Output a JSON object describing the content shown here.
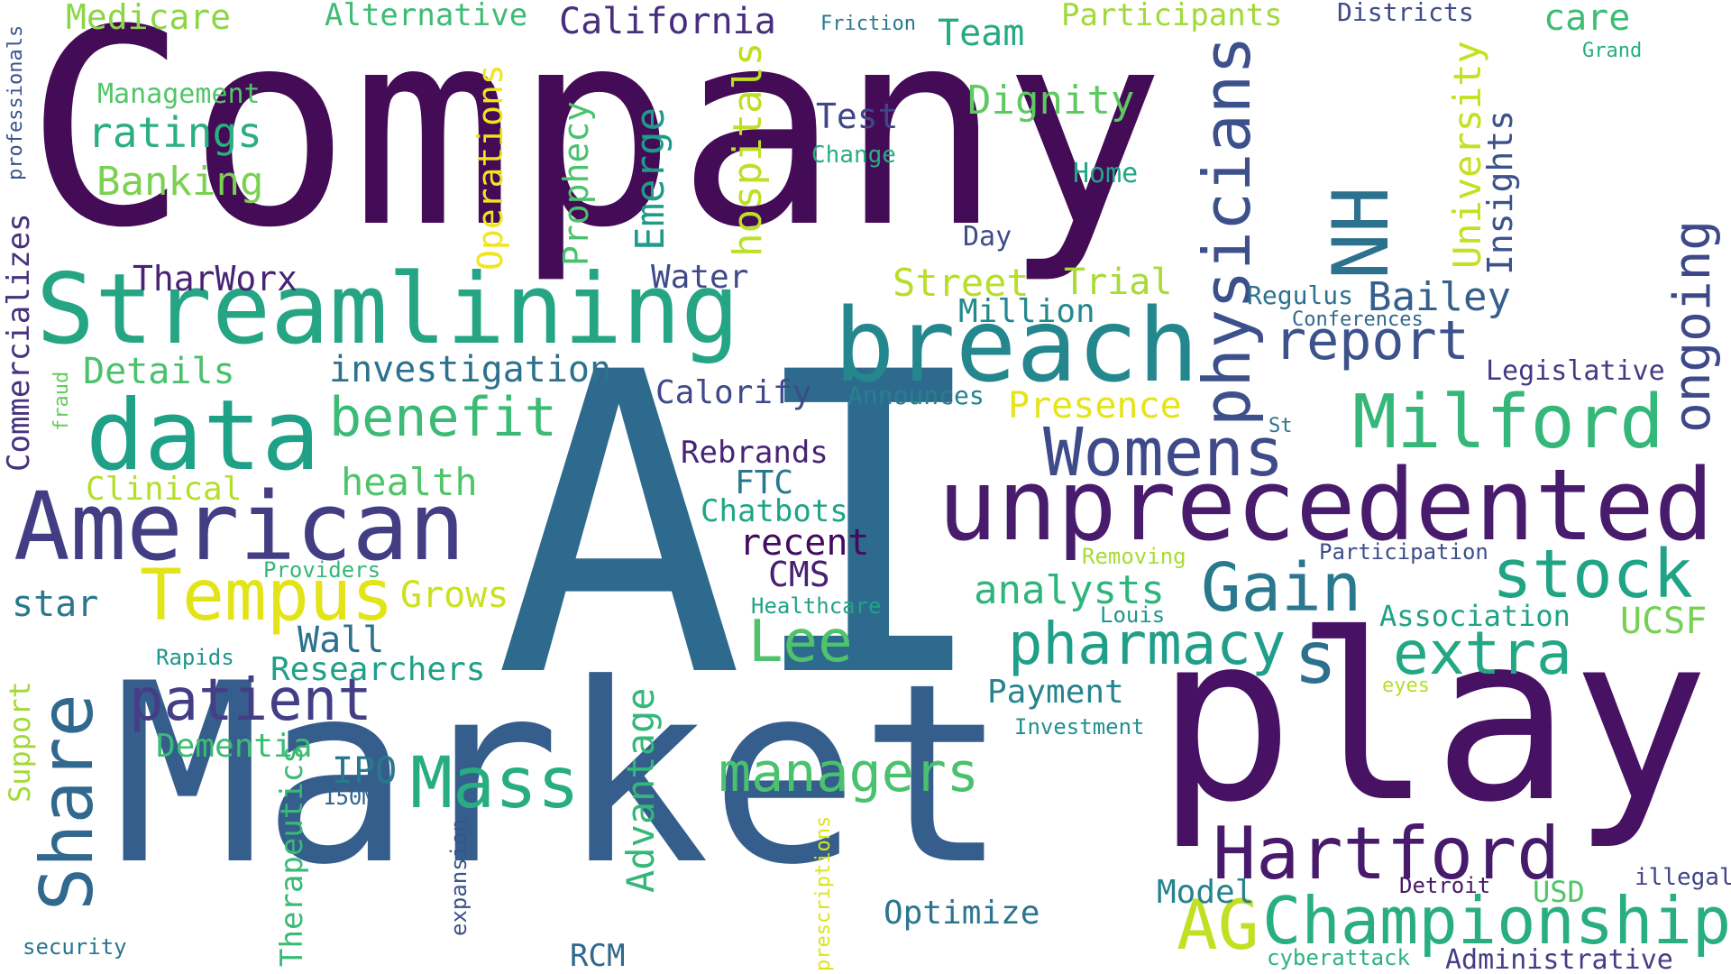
{
  "words": [
    {
      "text": "Company",
      "color": "#440b57"
    },
    {
      "text": "AI",
      "color": "#2e6a8e"
    },
    {
      "text": "Market",
      "color": "#355e8d"
    },
    {
      "text": "play",
      "color": "#471164"
    },
    {
      "text": "Streamlining",
      "color": "#25a584"
    },
    {
      "text": "breach",
      "color": "#24878e"
    },
    {
      "text": "unprecedented",
      "color": "#481b6d"
    },
    {
      "text": "data",
      "color": "#1fa188"
    },
    {
      "text": "American",
      "color": "#433d84"
    },
    {
      "text": "physicians",
      "color": "#3c508b"
    },
    {
      "text": "Milford",
      "color": "#35b779"
    },
    {
      "text": "NH",
      "color": "#2c718e"
    },
    {
      "text": "Womens",
      "color": "#3e4a89"
    },
    {
      "text": "Championship",
      "color": "#29af7f"
    },
    {
      "text": "Hartford",
      "color": "#481a6c"
    },
    {
      "text": "Tempus",
      "color": "#e2e418"
    },
    {
      "text": "Share",
      "color": "#31688e"
    },
    {
      "text": "Gain",
      "color": "#2a788e"
    },
    {
      "text": "stock",
      "color": "#20a486"
    },
    {
      "text": "report",
      "color": "#3b528b"
    },
    {
      "text": "ongoing",
      "color": "#3e4989"
    },
    {
      "text": "Mass",
      "color": "#27ad81"
    },
    {
      "text": "patient",
      "color": "#433e85"
    },
    {
      "text": "pharmacy",
      "color": "#1f9e89"
    },
    {
      "text": "extra",
      "color": "#22a884"
    },
    {
      "text": "benefit",
      "color": "#3bbb75"
    },
    {
      "text": "managers",
      "color": "#4ac16d"
    },
    {
      "text": "Lee",
      "color": "#4ec36b"
    },
    {
      "text": "AG",
      "color": "#c2df23"
    },
    {
      "text": "s",
      "color": "#2d708e"
    },
    {
      "text": "investigation",
      "color": "#2c728e"
    },
    {
      "text": "Medicare",
      "color": "#8bd646"
    },
    {
      "text": "Alternative",
      "color": "#3dbc74"
    },
    {
      "text": "California",
      "color": "#472f7d"
    },
    {
      "text": "Friction",
      "color": "#2a788e"
    },
    {
      "text": "Team",
      "color": "#25ab82"
    },
    {
      "text": "Participants",
      "color": "#a0da39"
    },
    {
      "text": "Districts",
      "color": "#3e4a89"
    },
    {
      "text": "care",
      "color": "#3dbc74"
    },
    {
      "text": "Grand",
      "color": "#26ad81"
    },
    {
      "text": "professionals",
      "color": "#3a548c"
    },
    {
      "text": "Management",
      "color": "#52c569"
    },
    {
      "text": "ratings",
      "color": "#2ab07f"
    },
    {
      "text": "Banking",
      "color": "#7ad151"
    },
    {
      "text": "Test",
      "color": "#3f4788"
    },
    {
      "text": "Change",
      "color": "#29af7f"
    },
    {
      "text": "Dignity",
      "color": "#5ec962"
    },
    {
      "text": "Home",
      "color": "#21a685"
    },
    {
      "text": "Day",
      "color": "#3d4e8a"
    },
    {
      "text": "Operations",
      "color": "#f1e51d"
    },
    {
      "text": "Prophecy",
      "color": "#4ac16d"
    },
    {
      "text": "Emerge",
      "color": "#1e9b8a"
    },
    {
      "text": "hospitals",
      "color": "#bddf26"
    },
    {
      "text": "University",
      "color": "#c5e021"
    },
    {
      "text": "Insights",
      "color": "#3b528b"
    },
    {
      "text": "Commercializes",
      "color": "#46327e"
    },
    {
      "text": "TharWorx",
      "color": "#482374"
    },
    {
      "text": "Water",
      "color": "#3e4a89"
    },
    {
      "text": "Street",
      "color": "#bade28"
    },
    {
      "text": "Trial",
      "color": "#a8db34"
    },
    {
      "text": "Million",
      "color": "#23898e"
    },
    {
      "text": "Regulus",
      "color": "#2c728e"
    },
    {
      "text": "Bailey",
      "color": "#355f8d"
    },
    {
      "text": "Conferences",
      "color": "#31688e"
    },
    {
      "text": "Details",
      "color": "#4ac16d"
    },
    {
      "text": "Calorify",
      "color": "#3e4a89"
    },
    {
      "text": "Announces",
      "color": "#27808e"
    },
    {
      "text": "Presence",
      "color": "#e5e419"
    },
    {
      "text": "Legislative",
      "color": "#443983"
    },
    {
      "text": "fraud",
      "color": "#65cb5e"
    },
    {
      "text": "St",
      "color": "#2c728e"
    },
    {
      "text": "Rebrands",
      "color": "#482475"
    },
    {
      "text": "FTC",
      "color": "#2a768e"
    },
    {
      "text": "Clinical",
      "color": "#b5de2b"
    },
    {
      "text": "health",
      "color": "#50c46a"
    },
    {
      "text": "Chatbots",
      "color": "#20a486"
    },
    {
      "text": "recent",
      "color": "#460a5d"
    },
    {
      "text": "CMS",
      "color": "#482071"
    },
    {
      "text": "Removing",
      "color": "#a8db34"
    },
    {
      "text": "Participation",
      "color": "#3c4f8a"
    },
    {
      "text": "analysts",
      "color": "#2fb47c"
    },
    {
      "text": "Louis",
      "color": "#1f968b"
    },
    {
      "text": "Association",
      "color": "#1fa287"
    },
    {
      "text": "UCSF",
      "color": "#75d054"
    },
    {
      "text": "Healthcare",
      "color": "#20a386"
    },
    {
      "text": "Providers",
      "color": "#35b779"
    },
    {
      "text": "Grows",
      "color": "#cae11f"
    },
    {
      "text": "star",
      "color": "#2a788e"
    },
    {
      "text": "Wall",
      "color": "#2c728e"
    },
    {
      "text": "Researchers",
      "color": "#1fa088"
    },
    {
      "text": "Rapids",
      "color": "#1f958b"
    },
    {
      "text": "Support",
      "color": "#a2da37"
    },
    {
      "text": "eyes",
      "color": "#b5de2b"
    },
    {
      "text": "Payment",
      "color": "#25848e"
    },
    {
      "text": "Investment",
      "color": "#21918c"
    },
    {
      "text": "Dementia",
      "color": "#3dbc74"
    },
    {
      "text": "IPO",
      "color": "#2a788e"
    },
    {
      "text": "150M",
      "color": "#33638d"
    },
    {
      "text": "Therapeutics",
      "color": "#3aba76"
    },
    {
      "text": "Advantage",
      "color": "#35b779"
    },
    {
      "text": "Optimize",
      "color": "#2b758e"
    },
    {
      "text": "Model",
      "color": "#26828e"
    },
    {
      "text": "Detroit",
      "color": "#481769"
    },
    {
      "text": "USD",
      "color": "#52c569"
    },
    {
      "text": "illegal",
      "color": "#414487"
    },
    {
      "text": "security",
      "color": "#2b748e"
    },
    {
      "text": "expansion",
      "color": "#3b518b"
    },
    {
      "text": "prescriptions",
      "color": "#dde318"
    },
    {
      "text": "RCM",
      "color": "#31688e"
    },
    {
      "text": "cyberattack",
      "color": "#2db27d"
    },
    {
      "text": "Administrative",
      "color": "#433e85"
    }
  ]
}
